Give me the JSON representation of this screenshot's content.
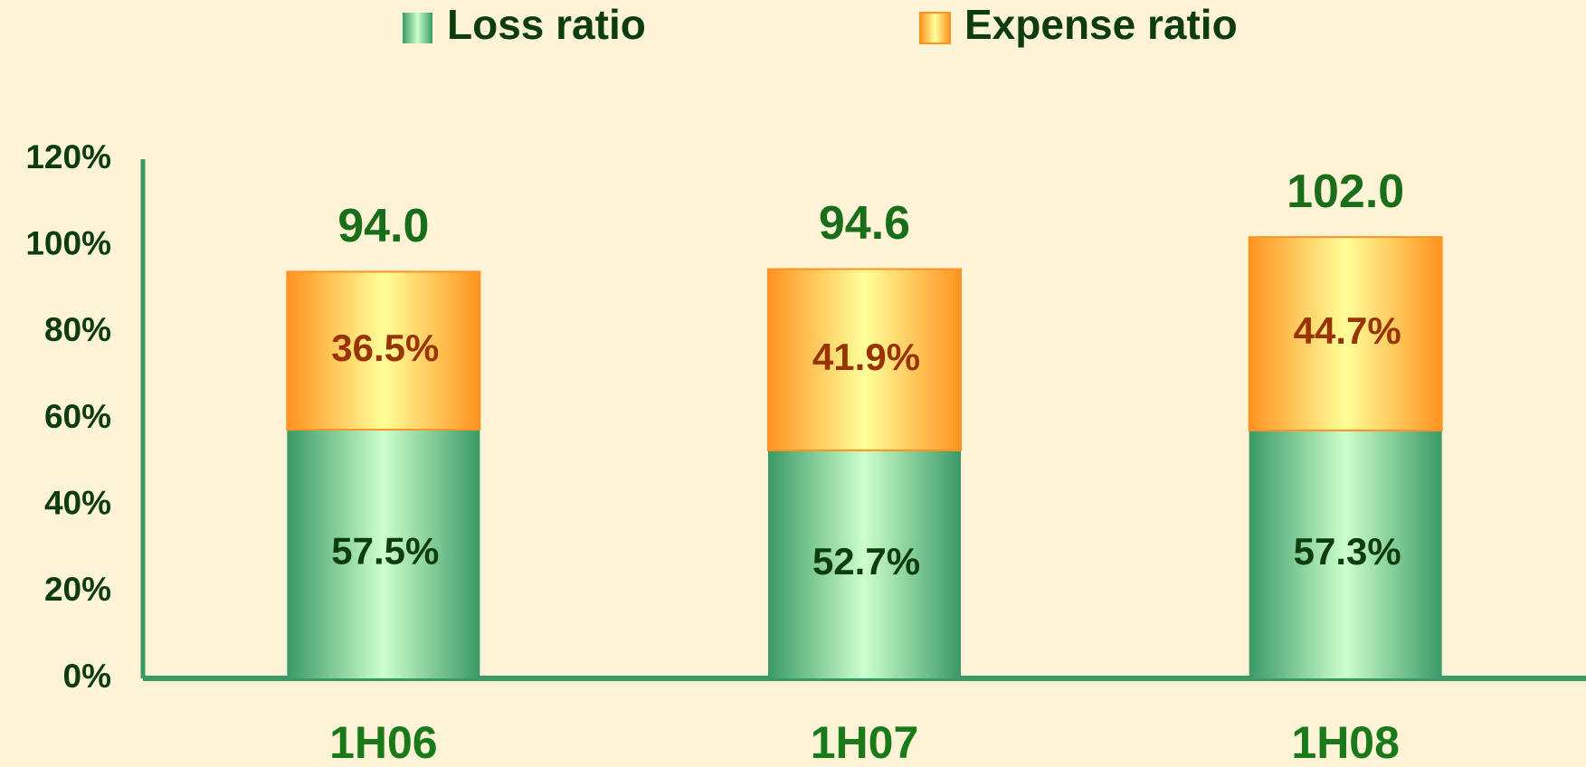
{
  "chart_data": {
    "type": "stacked_bar",
    "categories": [
      "1H06",
      "1H07",
      "1H08"
    ],
    "series": [
      {
        "name": "Loss ratio",
        "color": "#3a9a66",
        "values": [
          57.5,
          52.7,
          57.3
        ],
        "value_labels": [
          "57.5%",
          "52.7%",
          "57.3%"
        ]
      },
      {
        "name": "Expense ratio",
        "color": "#ff9320",
        "values": [
          36.5,
          41.9,
          44.7
        ],
        "value_labels": [
          "36.5%",
          "41.9%",
          "44.7%"
        ]
      }
    ],
    "totals": [
      94.0,
      94.6,
      102.0
    ],
    "total_labels": [
      "94.0",
      "94.6",
      "102.0"
    ],
    "ylim": [
      0,
      120
    ],
    "yticks": [
      {
        "value": 0,
        "label": "0%"
      },
      {
        "value": 20,
        "label": "20%"
      },
      {
        "value": 40,
        "label": "40%"
      },
      {
        "value": 60,
        "label": "60%"
      },
      {
        "value": 80,
        "label": "80%"
      },
      {
        "value": 100,
        "label": "100%"
      },
      {
        "value": 120,
        "label": "120%"
      }
    ],
    "grid": false
  }
}
